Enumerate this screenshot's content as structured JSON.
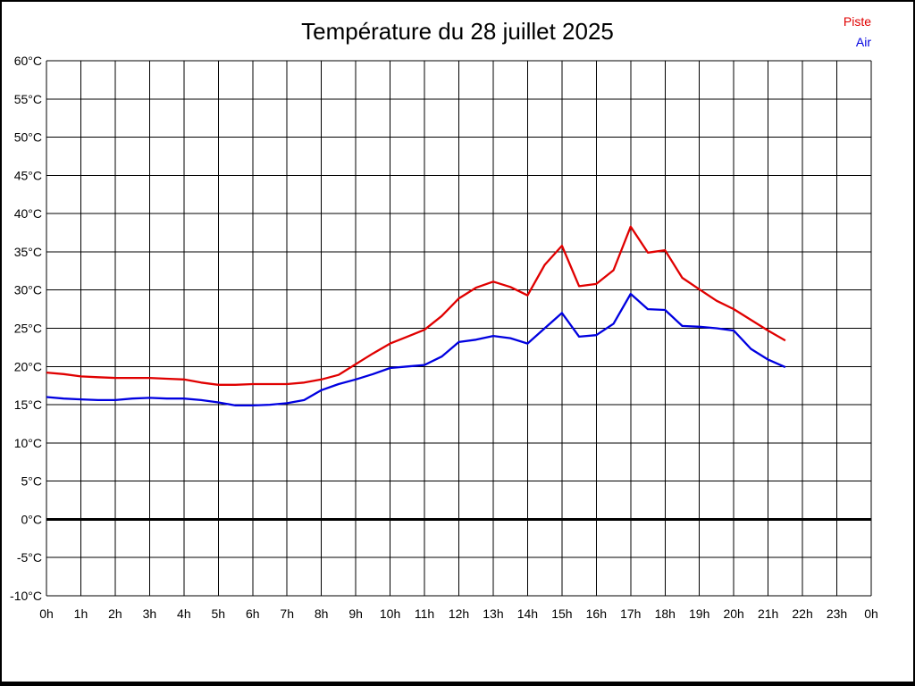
{
  "title": "Température du 28 juillet 2025",
  "legend": {
    "items": [
      {
        "label": "Piste",
        "color": "#e00000"
      },
      {
        "label": "Air",
        "color": "#0000e0"
      }
    ]
  },
  "chart_data": {
    "type": "line",
    "title": "Température du 28 juillet 2025",
    "xlabel": "",
    "ylabel": "",
    "xlim": [
      0,
      24
    ],
    "ylim": [
      -10,
      60
    ],
    "y_tick_step": 5,
    "grid": true,
    "legend_position": "top-right",
    "zero_line": {
      "value": 0,
      "color": "#000000",
      "width": 3
    },
    "x_tick_labels": [
      "0h",
      "1h",
      "2h",
      "3h",
      "4h",
      "5h",
      "6h",
      "7h",
      "8h",
      "9h",
      "10h",
      "11h",
      "12h",
      "13h",
      "14h",
      "15h",
      "16h",
      "17h",
      "18h",
      "19h",
      "20h",
      "21h",
      "22h",
      "23h",
      "0h"
    ],
    "y_tick_labels": [
      "60°C",
      "55°C",
      "50°C",
      "45°C",
      "40°C",
      "35°C",
      "30°C",
      "25°C",
      "20°C",
      "15°C",
      "10°C",
      "5°C",
      "0°C",
      "-5°C",
      "-10°C"
    ],
    "x": [
      0,
      0.5,
      1,
      1.5,
      2,
      2.5,
      3,
      3.5,
      4,
      4.5,
      5,
      5.5,
      6,
      6.5,
      7,
      7.5,
      8,
      8.5,
      9,
      9.5,
      10,
      10.5,
      11,
      11.5,
      12,
      12.5,
      13,
      13.5,
      14,
      14.5,
      15,
      15.5,
      16,
      16.5,
      17,
      17.5,
      18,
      18.5,
      19,
      19.5,
      20,
      20.5,
      21,
      21.5
    ],
    "series": [
      {
        "name": "Piste",
        "color": "#e00000",
        "values": [
          19.2,
          19.0,
          18.7,
          18.6,
          18.5,
          18.5,
          18.5,
          18.4,
          18.3,
          17.9,
          17.6,
          17.6,
          17.7,
          17.7,
          17.7,
          17.9,
          18.3,
          18.9,
          20.3,
          21.7,
          23.0,
          23.9,
          24.8,
          26.6,
          28.9,
          30.3,
          31.1,
          30.4,
          29.3,
          33.3,
          35.8,
          30.5,
          30.8,
          32.6,
          38.3,
          34.9,
          35.2,
          31.6,
          30.1,
          28.6,
          27.5,
          26.1,
          24.7,
          23.4
        ]
      },
      {
        "name": "Air",
        "color": "#0000e0",
        "values": [
          16.0,
          15.8,
          15.7,
          15.6,
          15.6,
          15.8,
          15.9,
          15.8,
          15.8,
          15.6,
          15.3,
          14.9,
          14.9,
          15.0,
          15.2,
          15.6,
          16.9,
          17.7,
          18.3,
          19.0,
          19.8,
          20.0,
          20.2,
          21.3,
          23.2,
          23.5,
          24.0,
          23.7,
          23.0,
          25.0,
          27.0,
          23.9,
          24.1,
          25.6,
          29.5,
          27.5,
          27.4,
          25.3,
          25.2,
          25.0,
          24.7,
          22.3,
          20.9,
          19.9
        ]
      }
    ]
  }
}
